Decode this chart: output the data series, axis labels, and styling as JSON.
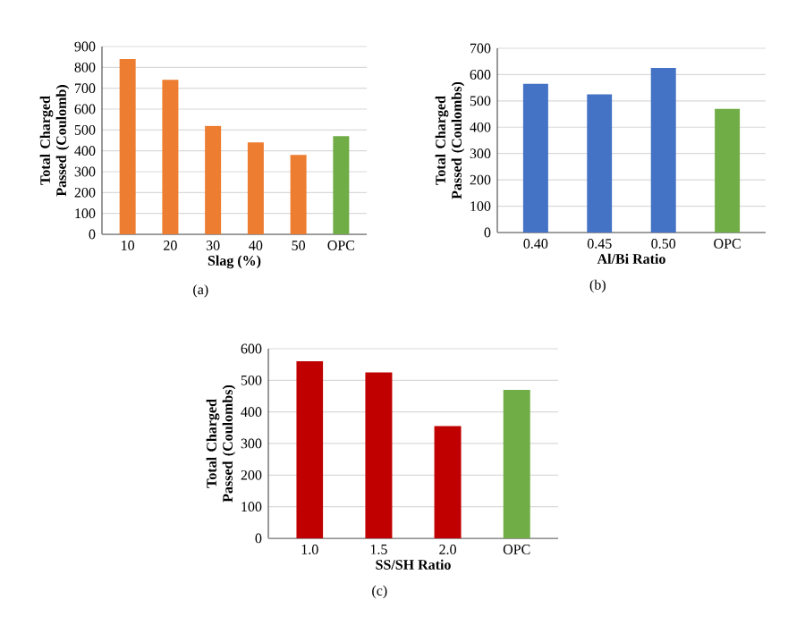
{
  "chart_data": [
    {
      "type": "bar",
      "categories": [
        "10",
        "20",
        "30",
        "40",
        "50",
        "OPC"
      ],
      "values": [
        840,
        740,
        520,
        440,
        380,
        470
      ],
      "colors": [
        "#ed7d31",
        "#ed7d31",
        "#ed7d31",
        "#ed7d31",
        "#ed7d31",
        "#70ad47"
      ],
      "xlabel": "Slag (%)",
      "ylabel": "Total Charged Passed (Coulomb)",
      "ylim": [
        0,
        900
      ],
      "yticks": [
        0,
        100,
        200,
        300,
        400,
        500,
        600,
        700,
        800,
        900
      ],
      "grid": "y",
      "annotations": [
        "(a)"
      ]
    },
    {
      "type": "bar",
      "categories": [
        "0.40",
        "0.45",
        "0.50",
        "OPC"
      ],
      "values": [
        565,
        525,
        625,
        470
      ],
      "colors": [
        "#4472c4",
        "#4472c4",
        "#4472c4",
        "#70ad47"
      ],
      "xlabel": "Al/Bi Ratio",
      "ylabel": "Total Charged Passed (Coulombs)",
      "ylim": [
        0,
        700
      ],
      "yticks": [
        0,
        100,
        200,
        300,
        400,
        500,
        600,
        700
      ],
      "grid": "y",
      "annotations": [
        "(b)"
      ]
    },
    {
      "type": "bar",
      "categories": [
        "1.0",
        "1.5",
        "2.0",
        "OPC"
      ],
      "values": [
        560,
        525,
        355,
        470
      ],
      "colors": [
        "#c00000",
        "#c00000",
        "#c00000",
        "#70ad47"
      ],
      "xlabel": "SS/SH Ratio",
      "ylabel": "Total Charged Passed (Coulombs)",
      "ylim": [
        0,
        600
      ],
      "yticks": [
        0,
        100,
        200,
        300,
        400,
        500,
        600
      ],
      "grid": "y",
      "annotations": [
        "(c)"
      ]
    }
  ]
}
